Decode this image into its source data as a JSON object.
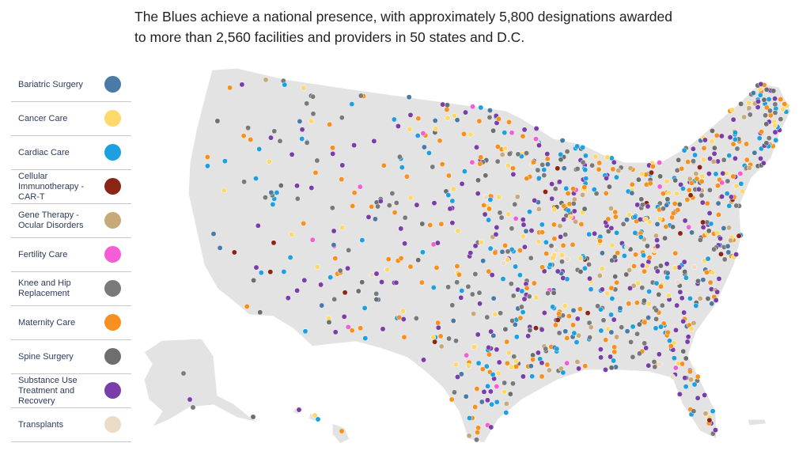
{
  "title": "The Blues achieve a national presence, with approximately 5,800 designations awarded to more than 2,560 facilities and providers in 50 states and D.C.",
  "legend": [
    {
      "label": "Bariatric Surgery",
      "color": "#4a7aa5"
    },
    {
      "label": "Cancer Care",
      "color": "#fcd96a"
    },
    {
      "label": "Cardiac Care",
      "color": "#1ea0e0"
    },
    {
      "label": "Cellular Immunotherapy - CAR-T",
      "color": "#8b2515"
    },
    {
      "label": "Gene Therapy - Ocular Disorders",
      "color": "#c8a97a"
    },
    {
      "label": "Fertility Care",
      "color": "#f55dd6"
    },
    {
      "label": "Knee and Hip Replacement",
      "color": "#7a7a7a"
    },
    {
      "label": "Maternity Care",
      "color": "#f7901e"
    },
    {
      "label": "Spine Surgery",
      "color": "#6d6e70"
    },
    {
      "label": "Substance Use Treatment and Recovery",
      "color": "#7a3ea8"
    },
    {
      "label": "Transplants",
      "color": "#ebdcc8"
    }
  ]
}
